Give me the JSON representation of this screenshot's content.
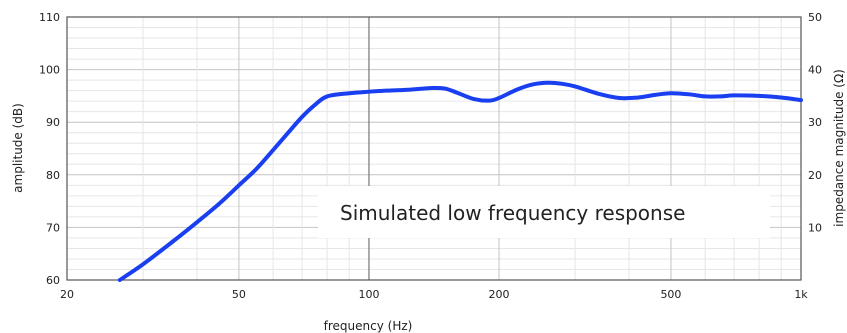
{
  "chart_data": {
    "type": "line",
    "xlabel": "frequency (Hz)",
    "ylabel": "amplitude (dB)",
    "y2label": "impedance magnitude (Ω)",
    "annotation": "Simulated low frequency response",
    "xscale": "log",
    "xlim": [
      20,
      1000
    ],
    "ylim": [
      60,
      110
    ],
    "y2lim": [
      0,
      50
    ],
    "x_ticks": [
      {
        "value": 20,
        "label": "20"
      },
      {
        "value": 50,
        "label": "50"
      },
      {
        "value": 100,
        "label": "100"
      },
      {
        "value": 200,
        "label": "200"
      },
      {
        "value": 500,
        "label": "500"
      },
      {
        "value": 1000,
        "label": "1k"
      }
    ],
    "y_ticks": [
      {
        "value": 60,
        "label": "60"
      },
      {
        "value": 70,
        "label": "70"
      },
      {
        "value": 80,
        "label": "80"
      },
      {
        "value": 90,
        "label": "90"
      },
      {
        "value": 100,
        "label": "100"
      },
      {
        "value": 110,
        "label": "110"
      }
    ],
    "y2_ticks": [
      {
        "value": 10,
        "label": "10"
      },
      {
        "value": 20,
        "label": "20"
      },
      {
        "value": 30,
        "label": "30"
      },
      {
        "value": 40,
        "label": "40"
      },
      {
        "value": 50,
        "label": "50"
      }
    ],
    "grid": true,
    "highlight_x": 100,
    "series": [
      {
        "color": "#1a3ff0",
        "x": [
          26.5,
          30,
          35,
          40,
          45,
          50,
          55,
          60,
          65,
          70,
          75,
          80,
          90,
          100,
          110,
          125,
          140,
          150,
          160,
          175,
          190,
          200,
          220,
          240,
          260,
          280,
          300,
          340,
          380,
          420,
          460,
          500,
          550,
          600,
          650,
          700,
          800,
          900,
          1000
        ],
        "y": [
          60,
          63,
          67.2,
          71,
          74.5,
          78,
          81.2,
          84.7,
          88,
          91,
          93.3,
          94.9,
          95.5,
          95.8,
          96,
          96.2,
          96.5,
          96.4,
          95.6,
          94.4,
          94.1,
          94.6,
          96.2,
          97.2,
          97.5,
          97.3,
          96.8,
          95.4,
          94.6,
          94.7,
          95.2,
          95.5,
          95.3,
          94.9,
          94.9,
          95.1,
          95,
          94.7,
          94.2
        ]
      }
    ]
  }
}
